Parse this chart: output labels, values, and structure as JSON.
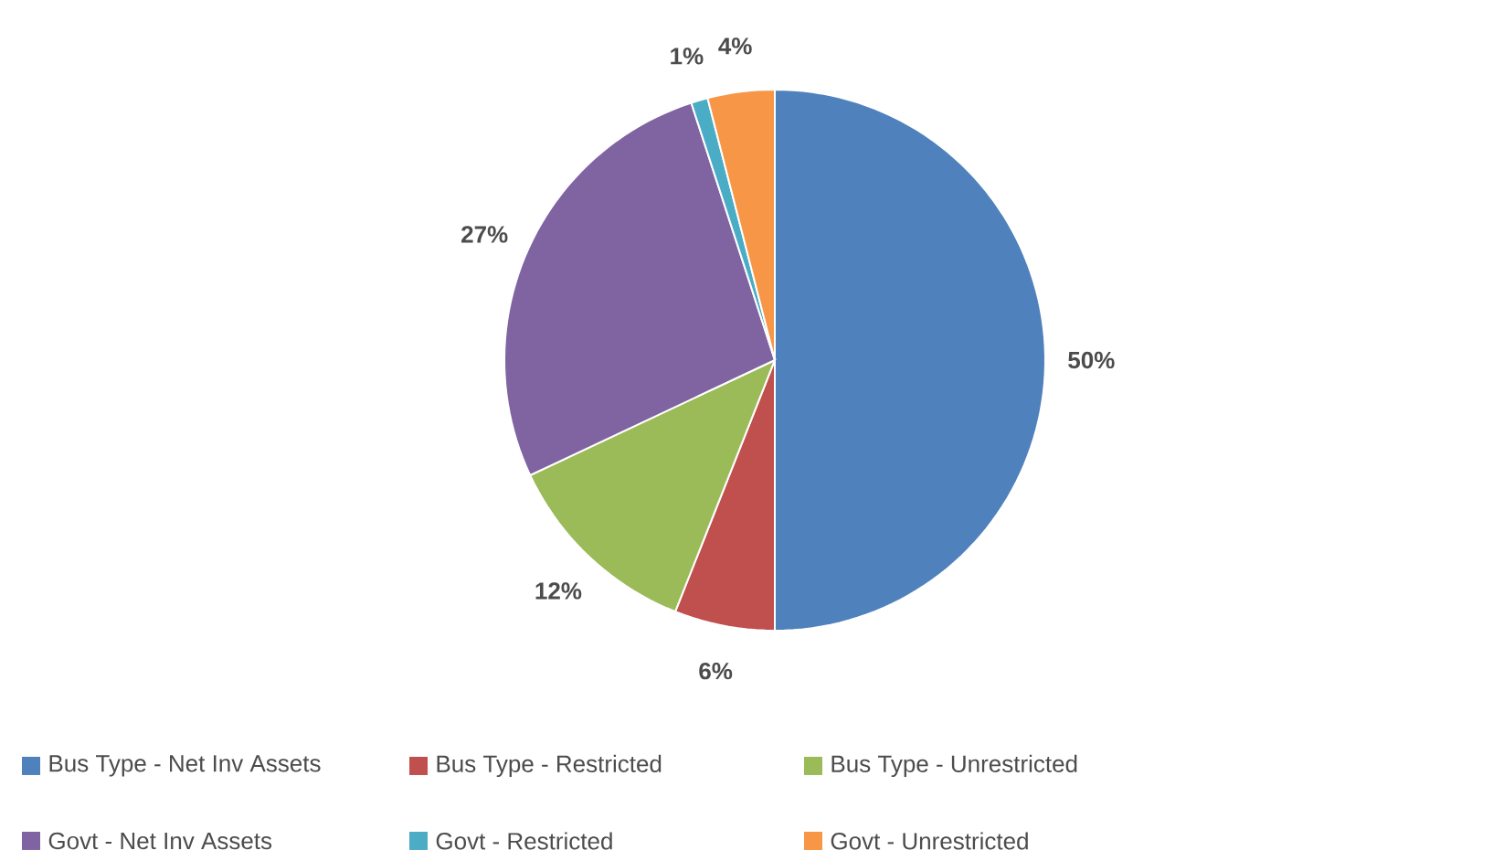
{
  "chart_data": {
    "type": "pie",
    "categories": [
      "Bus Type - Net Inv Assets",
      "Bus Type - Restricted",
      "Bus Type - Unrestricted",
      "Govt - Net Inv Assets",
      "Govt - Restricted",
      "Govt - Unrestricted"
    ],
    "values": [
      50,
      6,
      12,
      27,
      1,
      4
    ],
    "value_labels": [
      "50%",
      "6%",
      "12%",
      "27%",
      "1%",
      "4%"
    ],
    "colors": [
      "#4f81bd",
      "#c0504d",
      "#9bbb59",
      "#8064a2",
      "#4bacc6",
      "#f79646"
    ],
    "legend": "bottom"
  }
}
